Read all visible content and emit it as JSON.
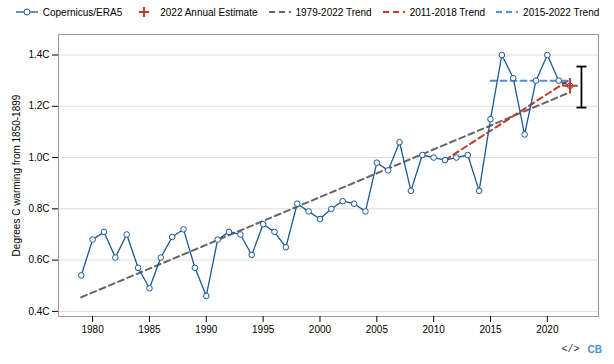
{
  "chart_data": {
    "type": "line",
    "ylabel": "Degrees C warming from 1850-1899",
    "series": [
      {
        "name": "Copernicus/ERA5",
        "color": "#1a5a96",
        "marker": "circle",
        "line_style": "solid",
        "x": [
          1979,
          1980,
          1981,
          1982,
          1983,
          1984,
          1985,
          1986,
          1987,
          1988,
          1989,
          1990,
          1991,
          1992,
          1993,
          1994,
          1995,
          1996,
          1997,
          1998,
          1999,
          2000,
          2001,
          2002,
          2003,
          2004,
          2005,
          2006,
          2007,
          2008,
          2009,
          2010,
          2011,
          2012,
          2013,
          2014,
          2015,
          2016,
          2017,
          2018,
          2019,
          2020,
          2021,
          2022
        ],
        "values": [
          0.54,
          0.68,
          0.71,
          0.61,
          0.7,
          0.57,
          0.49,
          0.61,
          0.69,
          0.72,
          0.57,
          0.46,
          0.68,
          0.71,
          0.7,
          0.62,
          0.74,
          0.71,
          0.65,
          0.82,
          0.79,
          0.76,
          0.8,
          0.83,
          0.82,
          0.79,
          0.98,
          0.95,
          1.06,
          0.87,
          1.01,
          1.0,
          0.99,
          1.0,
          1.01,
          0.87,
          1.15,
          1.4,
          1.31,
          1.09,
          1.3,
          1.4,
          1.3,
          1.28
        ]
      },
      {
        "name": "2022 Annual Estimate",
        "type": "scatter",
        "marker": "plus",
        "color": "#c0392b",
        "x": [
          2022
        ],
        "values": [
          1.28
        ]
      },
      {
        "name": "1979-2022 Trend",
        "color": "#666666",
        "line_style": "dashed",
        "x": [
          1979,
          2022
        ],
        "values": [
          0.455,
          1.255
        ]
      },
      {
        "name": "2011-2018 Trend",
        "color": "#c0392b",
        "line_style": "dashed",
        "x": [
          2011,
          2022
        ],
        "values": [
          0.99,
          1.305
        ]
      },
      {
        "name": "2015-2022 Trend",
        "color": "#4a90d9",
        "line_style": "dashed",
        "x": [
          2015,
          2022
        ],
        "values": [
          1.3,
          1.3
        ]
      }
    ],
    "error_bar": {
      "x": 2023.0,
      "low": 1.195,
      "high": 1.355
    },
    "xlim": [
      1977.0,
      2024.5
    ],
    "ylim": [
      0.38,
      1.48
    ],
    "xticks": [
      1980,
      1985,
      1990,
      1995,
      2000,
      2005,
      2010,
      2015,
      2020
    ],
    "yticks": [
      {
        "value": 0.4,
        "label": "0.4C"
      },
      {
        "value": 0.6,
        "label": "0.6C"
      },
      {
        "value": 0.8,
        "label": "0.8C"
      },
      {
        "value": 1.0,
        "label": "1.0C"
      },
      {
        "value": 1.2,
        "label": "1.2C"
      },
      {
        "value": 1.4,
        "label": "1.4C"
      }
    ],
    "grid": "y",
    "legend": "top",
    "annotations": [
      {
        "text": "</>",
        "color": "#333333"
      },
      {
        "text": "CB",
        "color": "#4a90d9"
      }
    ]
  }
}
